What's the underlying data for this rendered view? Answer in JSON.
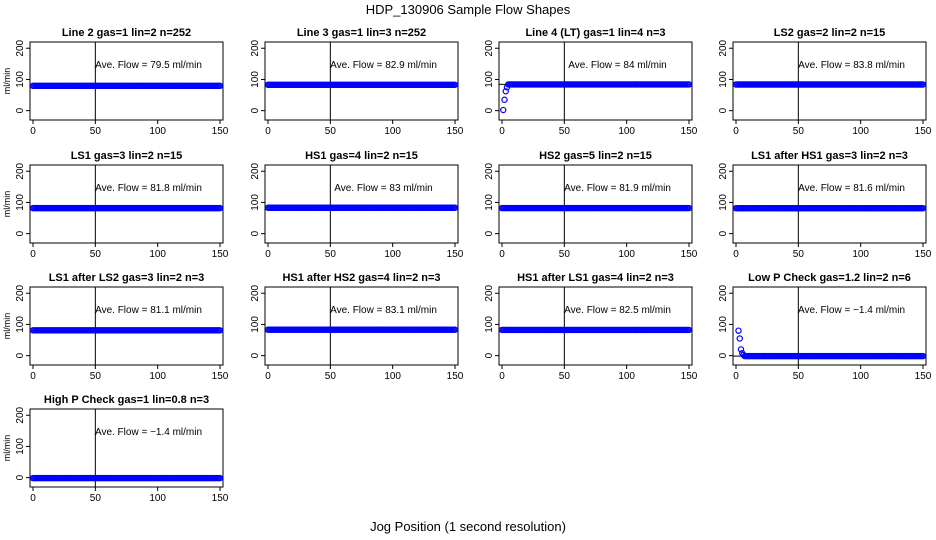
{
  "title": "HDP_130906  Sample Flow Shapes",
  "xlabel": "Jog Position (1 second resolution)",
  "ylabel": "ml/min",
  "chart_data": {
    "type": "scatter",
    "xlim": [
      0,
      150
    ],
    "ylim": [
      -30,
      220
    ],
    "x_ticks": [
      0,
      50,
      100,
      150
    ],
    "y_ticks": [
      0,
      100,
      200
    ],
    "y_tick_labels": [
      "0",
      "100",
      "200"
    ],
    "vline_x": 50,
    "point_color": "#0000ff",
    "annotation_prefix": "Ave. Flow = ",
    "annotation_unit": "ml/min",
    "grid": false,
    "panels": [
      {
        "title": "Line 2 gas=1 lin=2 n=252",
        "avg": 79.5,
        "avg_label": "79.5",
        "flat": 79.5
      },
      {
        "title": "Line 3 gas=1 lin=3 n=252",
        "avg": 82.9,
        "avg_label": "82.9",
        "flat": 82.9
      },
      {
        "title": "Line 4 (LT) gas=1 lin=4 n=3",
        "avg": 84,
        "avg_label": "84",
        "flat": 84,
        "early_points": [
          [
            1,
            2
          ],
          [
            2,
            35
          ],
          [
            3,
            62
          ],
          [
            4,
            75
          ]
        ]
      },
      {
        "title": "LS2 gas=2 lin=2 n=15",
        "avg": 83.8,
        "avg_label": "83.8",
        "flat": 83.8
      },
      {
        "title": "LS1 gas=3 lin=2 n=15",
        "avg": 81.8,
        "avg_label": "81.8",
        "flat": 81.8
      },
      {
        "title": "HS1 gas=4 lin=2 n=15",
        "avg": 83,
        "avg_label": "83",
        "flat": 83
      },
      {
        "title": "HS2 gas=5 lin=2 n=15",
        "avg": 81.9,
        "avg_label": "81.9",
        "flat": 81.9
      },
      {
        "title": "LS1 after HS1 gas=3 lin=2 n=3",
        "avg": 81.6,
        "avg_label": "81.6",
        "flat": 81.6
      },
      {
        "title": "LS1 after LS2 gas=3 lin=2 n=3",
        "avg": 81.1,
        "avg_label": "81.1",
        "flat": 81.1
      },
      {
        "title": "HS1 after HS2 gas=4 lin=2 n=3",
        "avg": 83.1,
        "avg_label": "83.1",
        "flat": 83.1
      },
      {
        "title": "HS1 after LS1 gas=4 lin=2 n=3",
        "avg": 82.5,
        "avg_label": "82.5",
        "flat": 82.5
      },
      {
        "title": "Low P Check gas=1.2 lin=2 n=6",
        "avg": -1.4,
        "avg_label": "−1.4",
        "flat": -1.4,
        "early_points": [
          [
            2,
            80
          ],
          [
            3,
            55
          ],
          [
            4,
            20
          ],
          [
            5,
            8
          ],
          [
            6,
            2
          ]
        ]
      },
      {
        "title": "High P Check gas=1 lin=0.8 n=3",
        "avg": -1.4,
        "avg_label": "−1.4",
        "flat": -1.4
      }
    ]
  }
}
